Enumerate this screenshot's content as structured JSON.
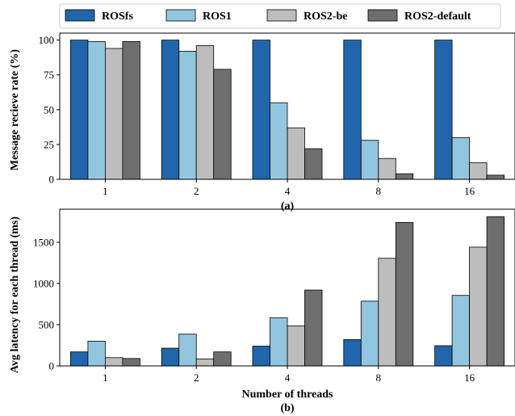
{
  "legend": {
    "items": [
      {
        "label": "ROSfs",
        "color": "#2166ac"
      },
      {
        "label": "ROS1",
        "color": "#92c5de"
      },
      {
        "label": "ROS2-be",
        "color": "#bdbdbd"
      },
      {
        "label": "ROS2-default",
        "color": "#6e6e6e"
      }
    ],
    "placement": "top-center"
  },
  "chart_data": [
    {
      "type": "bar",
      "subtitle": "(a)",
      "xlabel": "",
      "ylabel": "Message recieve rate (%)",
      "categories": [
        "1",
        "2",
        "4",
        "8",
        "16"
      ],
      "ylim": [
        0,
        105
      ],
      "yticks": [
        0,
        25,
        50,
        75,
        100
      ],
      "grid": false,
      "series": [
        {
          "name": "ROSfs",
          "values": [
            100,
            100,
            100,
            100,
            100
          ]
        },
        {
          "name": "ROS1",
          "values": [
            99,
            92,
            55,
            28,
            30
          ]
        },
        {
          "name": "ROS2-be",
          "values": [
            94,
            96,
            37,
            15,
            12
          ]
        },
        {
          "name": "ROS2-default",
          "values": [
            99,
            79,
            22,
            4,
            3
          ]
        }
      ]
    },
    {
      "type": "bar",
      "subtitle": "(b)",
      "xlabel": "Number of threads",
      "ylabel": "Avg latency for each thread (ms)",
      "categories": [
        "1",
        "2",
        "4",
        "8",
        "16"
      ],
      "ylim": [
        0,
        1900
      ],
      "yticks": [
        0,
        500,
        1000,
        1500
      ],
      "grid": false,
      "series": [
        {
          "name": "ROSfs",
          "values": [
            170,
            215,
            240,
            320,
            245
          ]
        },
        {
          "name": "ROS1",
          "values": [
            300,
            385,
            585,
            785,
            855
          ]
        },
        {
          "name": "ROS2-be",
          "values": [
            100,
            85,
            485,
            1305,
            1440
          ]
        },
        {
          "name": "ROS2-default",
          "values": [
            90,
            170,
            920,
            1740,
            1810
          ]
        }
      ]
    }
  ]
}
